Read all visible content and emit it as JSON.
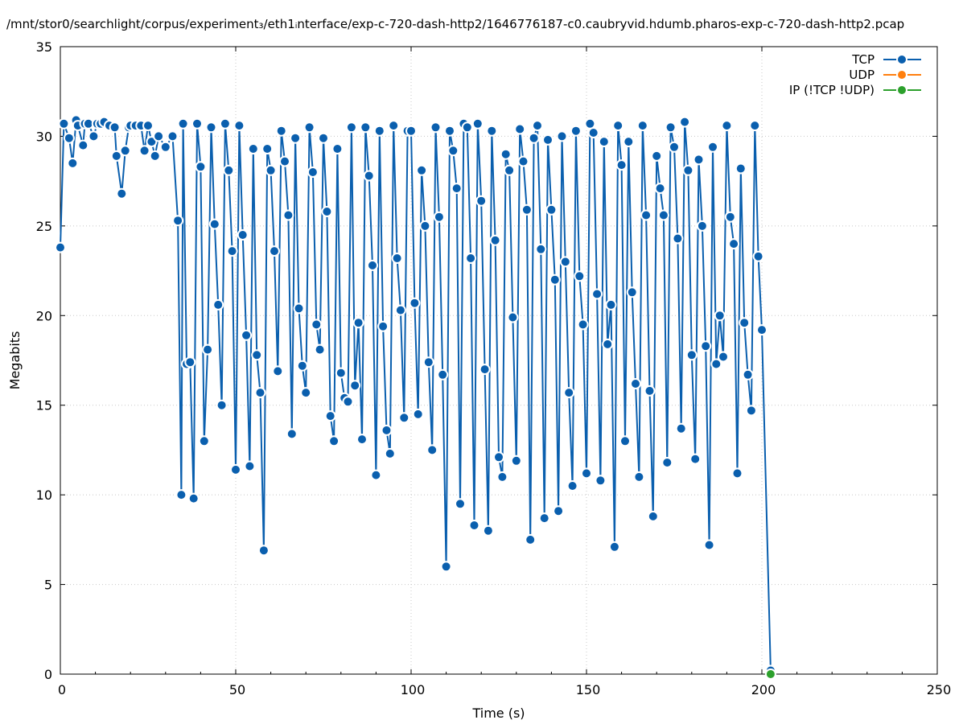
{
  "title": "/mnt/stor0/searchlight/corpus/experiment₃/eth1ᵢnterface/exp-c-720-dash-http2/1646776187-c0.caubryvid.hdumb.pharos-exp-c-720-dash-http2.pcap",
  "chart_data": {
    "type": "line",
    "xlabel": "Time (s)",
    "ylabel": "Megabits",
    "xlim": [
      0,
      250
    ],
    "ylim": [
      0,
      35
    ],
    "xticks": [
      "0",
      "50",
      "100",
      "150",
      "200",
      "250"
    ],
    "yticks": [
      "0",
      "5",
      "10",
      "15",
      "20",
      "25",
      "30",
      "35"
    ],
    "grid": true,
    "legend_position": "top-right",
    "series": [
      {
        "name": "TCP",
        "color": "#0a5fae",
        "points": [
          [
            0,
            23.8
          ],
          [
            1,
            30.7
          ],
          [
            2.5,
            29.9
          ],
          [
            3.5,
            28.5
          ],
          [
            4.5,
            30.9
          ],
          [
            5,
            30.6
          ],
          [
            6.5,
            29.5
          ],
          [
            7,
            30.7
          ],
          [
            8,
            30.7
          ],
          [
            9.5,
            30.0
          ],
          [
            10.5,
            30.7
          ],
          [
            11.5,
            30.7
          ],
          [
            12.5,
            30.8
          ],
          [
            14,
            30.6
          ],
          [
            15.5,
            30.5
          ],
          [
            16,
            28.9
          ],
          [
            17.5,
            26.8
          ],
          [
            18.5,
            29.2
          ],
          [
            19.5,
            30.5
          ],
          [
            20,
            30.6
          ],
          [
            21.5,
            30.6
          ],
          [
            23,
            30.6
          ],
          [
            24,
            29.2
          ],
          [
            25,
            30.6
          ],
          [
            26,
            29.7
          ],
          [
            27,
            28.9
          ],
          [
            28,
            30.0
          ],
          [
            30,
            29.4
          ],
          [
            32,
            30.0
          ],
          [
            33.5,
            25.3
          ],
          [
            34.5,
            10.0
          ],
          [
            35,
            30.7
          ],
          [
            36,
            17.3
          ],
          [
            37,
            17.4
          ],
          [
            38,
            9.8
          ],
          [
            39,
            30.7
          ],
          [
            40,
            28.3
          ],
          [
            41,
            13.0
          ],
          [
            42,
            18.1
          ],
          [
            43,
            30.5
          ],
          [
            44,
            25.1
          ],
          [
            45,
            20.6
          ],
          [
            46,
            15.0
          ],
          [
            47,
            30.7
          ],
          [
            48,
            28.1
          ],
          [
            49,
            23.6
          ],
          [
            50,
            11.4
          ],
          [
            51,
            30.6
          ],
          [
            52,
            24.5
          ],
          [
            53,
            18.9
          ],
          [
            54,
            11.6
          ],
          [
            55,
            29.3
          ],
          [
            56,
            17.8
          ],
          [
            57,
            15.7
          ],
          [
            58,
            6.9
          ],
          [
            59,
            29.3
          ],
          [
            60,
            28.1
          ],
          [
            61,
            23.6
          ],
          [
            62,
            16.9
          ],
          [
            63,
            30.3
          ],
          [
            64,
            28.6
          ],
          [
            65,
            25.6
          ],
          [
            66,
            13.4
          ],
          [
            67,
            29.9
          ],
          [
            68,
            20.4
          ],
          [
            69,
            17.2
          ],
          [
            70,
            15.7
          ],
          [
            71,
            30.5
          ],
          [
            72,
            28.0
          ],
          [
            73,
            19.5
          ],
          [
            74,
            18.1
          ],
          [
            75,
            29.9
          ],
          [
            76,
            25.8
          ],
          [
            77,
            14.4
          ],
          [
            78,
            13.0
          ],
          [
            79,
            29.3
          ],
          [
            80,
            16.8
          ],
          [
            81,
            15.4
          ],
          [
            82,
            15.2
          ],
          [
            83,
            30.5
          ],
          [
            84,
            16.1
          ],
          [
            85,
            19.6
          ],
          [
            86,
            13.1
          ],
          [
            87,
            30.5
          ],
          [
            88,
            27.8
          ],
          [
            89,
            22.8
          ],
          [
            90,
            11.1
          ],
          [
            91,
            30.3
          ],
          [
            92,
            19.4
          ],
          [
            93,
            13.6
          ],
          [
            94,
            12.3
          ],
          [
            95,
            30.6
          ],
          [
            96,
            23.2
          ],
          [
            97,
            20.3
          ],
          [
            98,
            14.3
          ],
          [
            99,
            30.3
          ],
          [
            100,
            30.3
          ],
          [
            101,
            20.7
          ],
          [
            102,
            14.5
          ],
          [
            103,
            28.1
          ],
          [
            104,
            25.0
          ],
          [
            105,
            17.4
          ],
          [
            106,
            12.5
          ],
          [
            107,
            30.5
          ],
          [
            108,
            25.5
          ],
          [
            109,
            16.7
          ],
          [
            110,
            6.0
          ],
          [
            111,
            30.3
          ],
          [
            112,
            29.2
          ],
          [
            113,
            27.1
          ],
          [
            114,
            9.5
          ],
          [
            115,
            30.7
          ],
          [
            116,
            30.5
          ],
          [
            117,
            23.2
          ],
          [
            118,
            8.3
          ],
          [
            119,
            30.7
          ],
          [
            120,
            26.4
          ],
          [
            121,
            17.0
          ],
          [
            122,
            8.0
          ],
          [
            123,
            30.3
          ],
          [
            124,
            24.2
          ],
          [
            125,
            12.1
          ],
          [
            126,
            11.0
          ],
          [
            127,
            29.0
          ],
          [
            128,
            28.1
          ],
          [
            129,
            19.9
          ],
          [
            130,
            11.9
          ],
          [
            131,
            30.4
          ],
          [
            132,
            28.6
          ],
          [
            133,
            25.9
          ],
          [
            134,
            7.5
          ],
          [
            135,
            29.9
          ],
          [
            136,
            30.6
          ],
          [
            137,
            23.7
          ],
          [
            138,
            8.7
          ],
          [
            139,
            29.8
          ],
          [
            140,
            25.9
          ],
          [
            141,
            22.0
          ],
          [
            142,
            9.1
          ],
          [
            143,
            30.0
          ],
          [
            144,
            23.0
          ],
          [
            145,
            15.7
          ],
          [
            146,
            10.5
          ],
          [
            147,
            30.3
          ],
          [
            148,
            22.2
          ],
          [
            149,
            19.5
          ],
          [
            150,
            11.2
          ],
          [
            151,
            30.7
          ],
          [
            152,
            30.2
          ],
          [
            153,
            21.2
          ],
          [
            154,
            10.8
          ],
          [
            155,
            29.7
          ],
          [
            156,
            18.4
          ],
          [
            157,
            20.6
          ],
          [
            158,
            7.1
          ],
          [
            159,
            30.6
          ],
          [
            160,
            28.4
          ],
          [
            161,
            13.0
          ],
          [
            162,
            29.7
          ],
          [
            163,
            21.3
          ],
          [
            164,
            16.2
          ],
          [
            165,
            11.0
          ],
          [
            166,
            30.6
          ],
          [
            167,
            25.6
          ],
          [
            168,
            15.8
          ],
          [
            169,
            8.8
          ],
          [
            170,
            28.9
          ],
          [
            171,
            27.1
          ],
          [
            172,
            25.6
          ],
          [
            173,
            11.8
          ],
          [
            174,
            30.5
          ],
          [
            175,
            29.4
          ],
          [
            176,
            24.3
          ],
          [
            177,
            13.7
          ],
          [
            178,
            30.8
          ],
          [
            179,
            28.1
          ],
          [
            180,
            17.8
          ],
          [
            181,
            12.0
          ],
          [
            182,
            28.7
          ],
          [
            183,
            25.0
          ],
          [
            184,
            18.3
          ],
          [
            185,
            7.2
          ],
          [
            186,
            29.4
          ],
          [
            187,
            17.3
          ],
          [
            188,
            20.0
          ],
          [
            189,
            17.7
          ],
          [
            190,
            30.6
          ],
          [
            191,
            25.5
          ],
          [
            192,
            24.0
          ],
          [
            193,
            11.2
          ],
          [
            194,
            28.2
          ],
          [
            195,
            19.6
          ],
          [
            196,
            16.7
          ],
          [
            197,
            14.7
          ],
          [
            198,
            30.6
          ],
          [
            199,
            23.3
          ],
          [
            200,
            19.2
          ],
          [
            202.5,
            0.2
          ]
        ]
      },
      {
        "name": "UDP",
        "color": "#ff7f0e",
        "points": []
      },
      {
        "name": "IP (!TCP  !UDP)",
        "color": "#2ca02c",
        "points": [
          [
            202.5,
            0.0
          ]
        ]
      }
    ]
  }
}
